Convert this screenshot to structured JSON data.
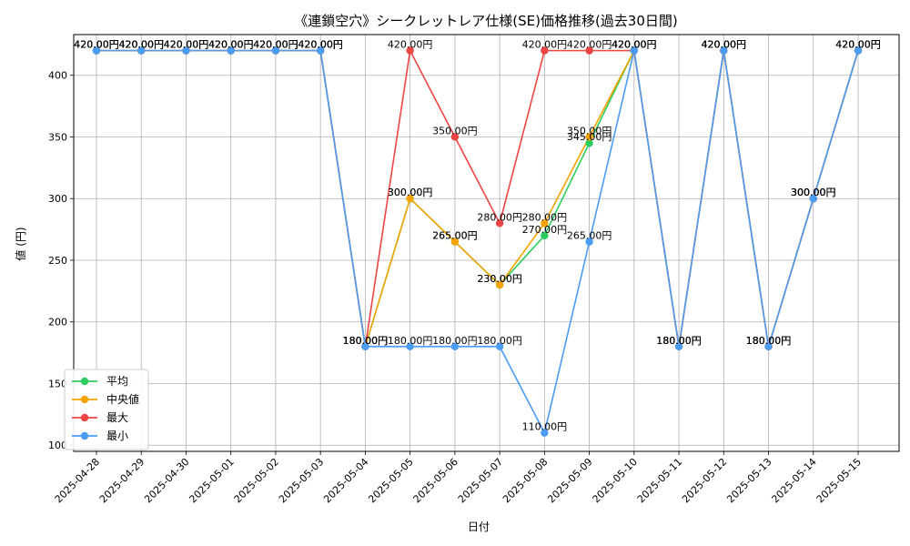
{
  "chart_data": {
    "type": "line",
    "title": "《連鎖空穴》シークレットレア仕様(SE)価格推移(過去30日間)",
    "xlabel": "日付",
    "ylabel": "値 (円)",
    "ylim": [
      95,
      433
    ],
    "yticks": [
      100,
      150,
      200,
      250,
      300,
      350,
      400
    ],
    "grid": true,
    "legend_position": "lower-left",
    "value_suffix": "円",
    "categories": [
      "2025-04-28",
      "2025-04-29",
      "2025-04-30",
      "2025-05-01",
      "2025-05-02",
      "2025-05-03",
      "2025-05-04",
      "2025-05-05",
      "2025-05-06",
      "2025-05-07",
      "2025-05-08",
      "2025-05-09",
      "2025-05-10",
      "2025-05-11",
      "2025-05-12",
      "2025-05-13",
      "2025-05-14",
      "2025-05-15"
    ],
    "series": [
      {
        "name": "平均",
        "color": "#2ecc5f",
        "values": [
          420,
          420,
          420,
          420,
          420,
          420,
          180,
          300,
          265,
          230,
          270,
          345,
          420,
          180,
          420,
          180,
          300,
          420
        ]
      },
      {
        "name": "中央値",
        "color": "#f5a300",
        "values": [
          420,
          420,
          420,
          420,
          420,
          420,
          180,
          300,
          265,
          230,
          280,
          350,
          420,
          180,
          420,
          180,
          300,
          420
        ]
      },
      {
        "name": "最大",
        "color": "#ef4444",
        "values": [
          420,
          420,
          420,
          420,
          420,
          420,
          180,
          420,
          350,
          280,
          420,
          420,
          420,
          180,
          420,
          180,
          300,
          420
        ]
      },
      {
        "name": "最小",
        "color": "#4a9cf5",
        "values": [
          420,
          420,
          420,
          420,
          420,
          420,
          180,
          180,
          180,
          180,
          110,
          265,
          420,
          180,
          420,
          180,
          300,
          420
        ]
      }
    ]
  }
}
